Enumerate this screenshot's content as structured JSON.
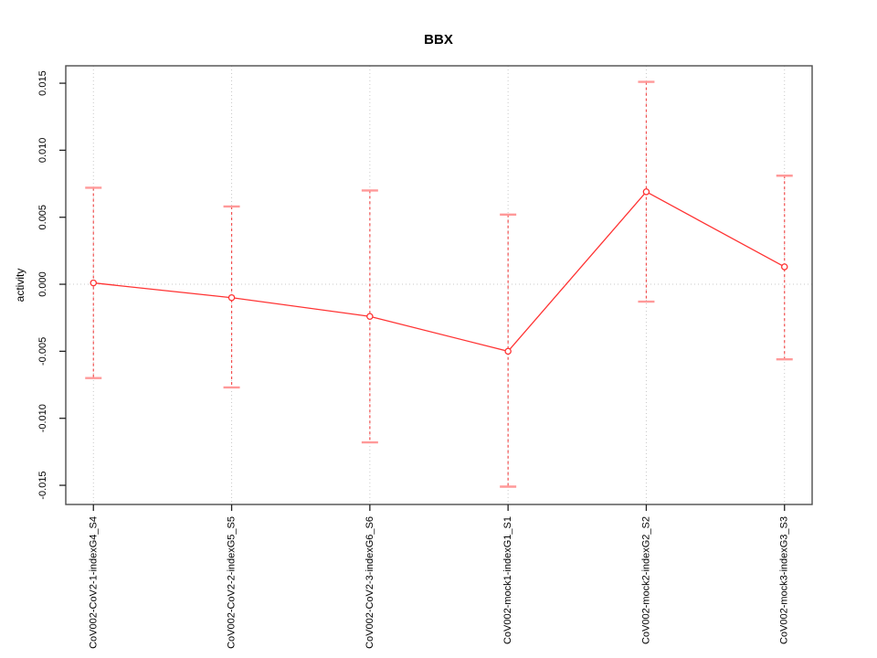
{
  "chart_data": {
    "type": "line",
    "title": "BBX",
    "xlabel": "",
    "ylabel": "activity",
    "categories": [
      "CoV002-CoV2-1-indexG4_S4",
      "CoV002-CoV2-2-indexG5_S5",
      "CoV002-CoV2-3-indexG6_S6",
      "CoV002-mock1-indexG1_S1",
      "CoV002-mock2-indexG2_S2",
      "CoV002-mock3-indexG3_S3"
    ],
    "series": [
      {
        "name": "activity",
        "values": [
          0.0001,
          -0.001,
          -0.0024,
          -0.005,
          0.0069,
          0.0013
        ],
        "error_upper": [
          0.0072,
          0.0058,
          0.007,
          0.0052,
          0.0151,
          0.0081
        ],
        "error_lower": [
          -0.007,
          -0.0077,
          -0.0118,
          -0.0151,
          -0.0013,
          -0.0056
        ]
      }
    ],
    "yticks": [
      -0.015,
      -0.01,
      -0.005,
      0.0,
      0.005,
      0.01,
      0.015
    ],
    "ytick_labels": [
      "-0.015",
      "-0.010",
      "-0.005",
      "0.000",
      "0.005",
      "0.010",
      "0.015"
    ],
    "ylim": [
      -0.01643,
      0.0163
    ],
    "xlim": [
      0.8,
      6.2
    ],
    "grid": {
      "vertical_at_categories": true,
      "horizontal_at_zero": true,
      "style": "dotted"
    },
    "legend": "none",
    "marker": "open-circle",
    "colors": {
      "line": "#ff3333",
      "marker": "#ff3333",
      "error_bar_line": "#f25050",
      "error_bar_cap": "#ff9999",
      "grid": "#c8c8c8",
      "frame": "#4d4d4d",
      "tick": "#222222",
      "text": "#000000"
    }
  }
}
